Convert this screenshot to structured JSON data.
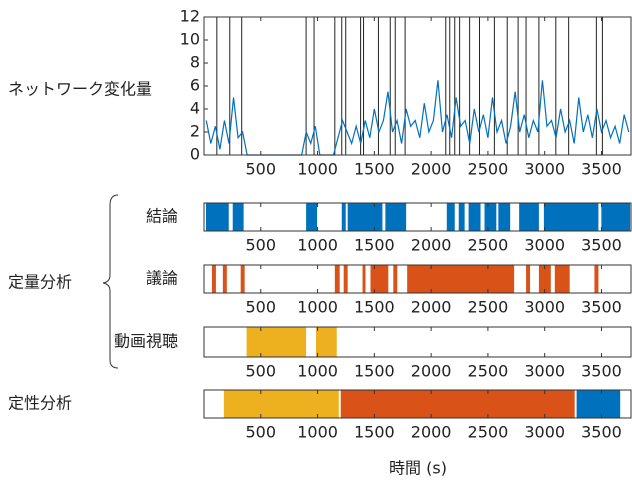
{
  "group_label": "定量分析",
  "xlabel": "時間 (s)",
  "chart_data": [
    {
      "type": "line",
      "label": "ネットワーク変化量",
      "xlim": [
        0,
        3760
      ],
      "xticks": [
        500,
        1000,
        1500,
        2000,
        2500,
        3000,
        3500
      ],
      "ylim": [
        0,
        12
      ],
      "yticks": [
        0,
        2,
        4,
        6,
        8,
        10,
        12
      ],
      "x": [
        20,
        60,
        100,
        140,
        180,
        220,
        260,
        300,
        340,
        380,
        420,
        460,
        500,
        540,
        580,
        620,
        660,
        700,
        740,
        780,
        820,
        860,
        900,
        940,
        980,
        1020,
        1060,
        1100,
        1140,
        1180,
        1220,
        1260,
        1300,
        1340,
        1380,
        1420,
        1460,
        1500,
        1540,
        1580,
        1620,
        1660,
        1700,
        1740,
        1780,
        1820,
        1860,
        1900,
        1940,
        1980,
        2020,
        2060,
        2100,
        2140,
        2180,
        2220,
        2260,
        2300,
        2340,
        2380,
        2420,
        2460,
        2500,
        2540,
        2580,
        2620,
        2660,
        2700,
        2740,
        2780,
        2820,
        2860,
        2900,
        2940,
        2980,
        3020,
        3060,
        3100,
        3140,
        3180,
        3220,
        3260,
        3300,
        3340,
        3380,
        3420,
        3460,
        3500,
        3540,
        3580,
        3620,
        3660,
        3700,
        3740
      ],
      "series": [
        {
          "color": "#0072bd",
          "values": [
            3,
            1,
            2.5,
            0.5,
            3,
            1,
            5,
            1.5,
            2,
            0,
            0,
            0,
            0,
            0,
            0,
            0,
            0,
            0,
            0,
            0,
            0,
            0,
            2,
            1,
            2.5,
            0,
            0,
            0,
            0,
            1.5,
            3,
            2,
            1,
            2.5,
            1,
            3,
            1.5,
            4,
            2,
            3,
            5.5,
            2,
            3,
            1,
            4,
            2.5,
            3,
            1.5,
            4.5,
            2,
            3,
            6.5,
            2,
            3.5,
            1.5,
            5,
            2.5,
            3,
            1,
            4,
            2,
            3.5,
            1.5,
            5,
            2,
            3,
            1,
            2.5,
            5.5,
            2,
            3.5,
            1.5,
            3,
            2,
            6.5,
            2.5,
            3,
            1.5,
            4,
            2,
            3,
            1,
            5,
            2,
            3.5,
            1.5,
            4,
            2,
            3,
            1.5,
            2.5,
            1,
            3.5,
            2
          ]
        }
      ],
      "spike_x": [
        113,
        227,
        332,
        899,
        969,
        1152,
        1213,
        1248,
        1379,
        1405,
        1536,
        1640,
        1684,
        1771,
        2129,
        2164,
        2208,
        2251,
        2339,
        2426,
        2557,
        2670,
        2766,
        2836,
        2949,
        3098,
        3211,
        3455,
        3508
      ],
      "spike_color": "#222222"
    },
    {
      "type": "segments",
      "label": "結論",
      "xlim": [
        0,
        3760
      ],
      "xticks": [
        500,
        1000,
        1500,
        2000,
        2500,
        3000,
        3500
      ],
      "series": [
        {
          "color": "#0072bd",
          "segments": [
            [
              17,
              218
            ],
            [
              253,
              349
            ],
            [
              899,
              995
            ],
            [
              1213,
              1248
            ],
            [
              1265,
              1571
            ],
            [
              1597,
              1780
            ],
            [
              2138,
              2208
            ],
            [
              2243,
              2295
            ],
            [
              2330,
              2435
            ],
            [
              2470,
              2574
            ],
            [
              2592,
              2696
            ],
            [
              2775,
              2949
            ],
            [
              2993,
              3473
            ],
            [
              3499,
              3752
            ]
          ]
        }
      ]
    },
    {
      "type": "segments",
      "label": "議論",
      "xlim": [
        0,
        3760
      ],
      "xticks": [
        500,
        1000,
        1500,
        2000,
        2500,
        3000,
        3500
      ],
      "series": [
        {
          "color": "#d95319",
          "segments": [
            [
              70,
              105
            ],
            [
              166,
              201
            ],
            [
              323,
              358
            ],
            [
              1152,
              1195
            ],
            [
              1230,
              1265
            ],
            [
              1396,
              1422
            ],
            [
              1466,
              1623
            ],
            [
              1667,
              1702
            ],
            [
              1789,
              2731
            ],
            [
              2836,
              2871
            ],
            [
              2949,
              3054
            ],
            [
              3089,
              3220
            ],
            [
              3438,
              3473
            ]
          ]
        }
      ]
    },
    {
      "type": "segments",
      "label": "動画視聴",
      "xlim": [
        0,
        3760
      ],
      "xticks": [
        500,
        1000,
        1500,
        2000,
        2500,
        3000,
        3500
      ],
      "series": [
        {
          "color": "#edb120",
          "segments": [
            [
              375,
              899
            ],
            [
              986,
              1169
            ]
          ]
        }
      ]
    },
    {
      "type": "segments",
      "label": "定性分析",
      "xlim": [
        0,
        3760
      ],
      "xticks": [
        500,
        1000,
        1500,
        2000,
        2500,
        3000,
        3500
      ],
      "series": [
        {
          "color": "#edb120",
          "segments": [
            [
              175,
              1187
            ]
          ]
        },
        {
          "color": "#d95319",
          "segments": [
            [
              1204,
              3264
            ]
          ]
        },
        {
          "color": "#0072bd",
          "segments": [
            [
              3281,
              3665
            ]
          ]
        }
      ]
    }
  ]
}
